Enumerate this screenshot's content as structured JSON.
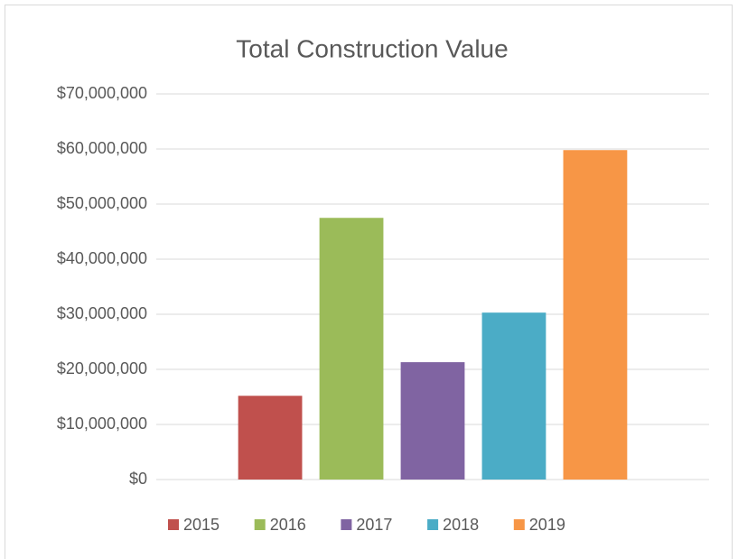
{
  "chart_data": {
    "type": "bar",
    "title": "Total Construction Value",
    "categories": [
      null
    ],
    "series": [
      {
        "name": "2015",
        "color": "#c0504d",
        "values": [
          15200000
        ]
      },
      {
        "name": "2016",
        "color": "#9bbb59",
        "values": [
          47500000
        ]
      },
      {
        "name": "2017",
        "color": "#8064a2",
        "values": [
          21300000
        ]
      },
      {
        "name": "2018",
        "color": "#4bacc6",
        "values": [
          30300000
        ]
      },
      {
        "name": "2019",
        "color": "#f79646",
        "values": [
          59800000
        ]
      }
    ],
    "ylim": [
      0,
      70000000
    ],
    "yticks": [
      {
        "value": 0,
        "label": "$0"
      },
      {
        "value": 10000000,
        "label": "$10,000,000"
      },
      {
        "value": 20000000,
        "label": "$20,000,000"
      },
      {
        "value": 30000000,
        "label": "$30,000,000"
      },
      {
        "value": 40000000,
        "label": "$40,000,000"
      },
      {
        "value": 50000000,
        "label": "$50,000,000"
      },
      {
        "value": 60000000,
        "label": "$60,000,000"
      },
      {
        "value": 70000000,
        "label": "$70,000,000"
      }
    ],
    "grid": true,
    "legend": "bottom"
  }
}
